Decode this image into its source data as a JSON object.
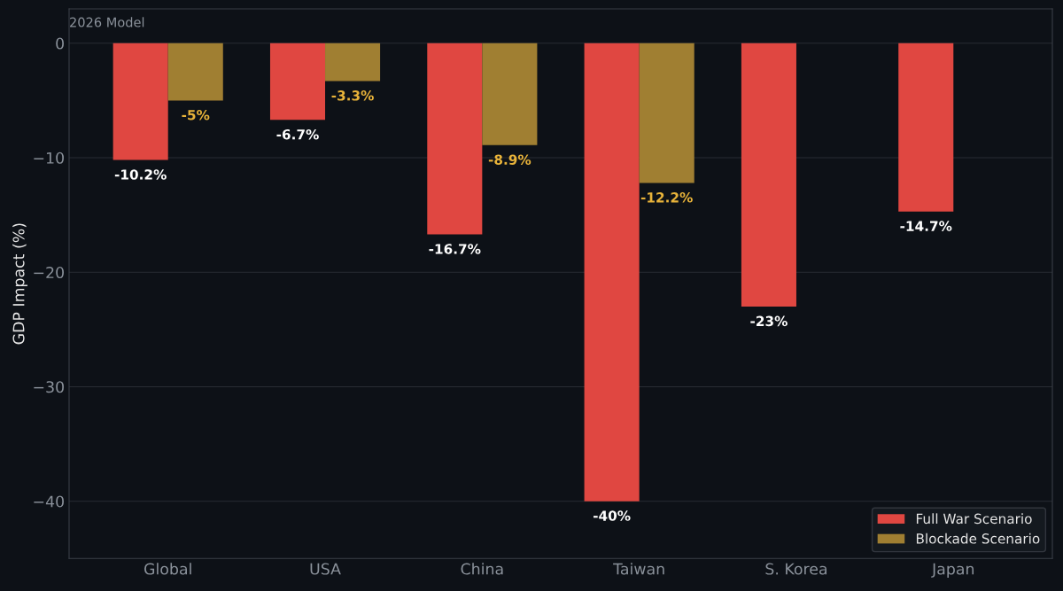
{
  "chart_data": {
    "type": "bar",
    "ylabel": "GDP Impact (%)",
    "annotations": [
      "2026 Model"
    ],
    "categories": [
      "Global",
      "USA",
      "China",
      "Taiwan",
      "S. Korea",
      "Japan"
    ],
    "series": [
      {
        "name": "Full War Scenario",
        "color": "#e04741",
        "values": [
          -10.2,
          -6.7,
          -16.7,
          -40,
          -23,
          -14.7
        ],
        "value_labels": [
          "-10.2%",
          "-6.7%",
          "-16.7%",
          "-40%",
          "-23%",
          "-14.7%"
        ]
      },
      {
        "name": "Blockade Scenario",
        "color": "#a07f32",
        "values": [
          -5,
          -3.3,
          -8.9,
          -12.2,
          null,
          null
        ],
        "value_labels": [
          "-5%",
          "-3.3%",
          "-8.9%",
          "-12.2%",
          null,
          null
        ]
      }
    ],
    "ylim": [
      -45,
      3
    ],
    "yticks": [
      {
        "value": 0,
        "label": "0"
      },
      {
        "value": -10,
        "label": "−10"
      },
      {
        "value": -20,
        "label": "−20"
      },
      {
        "value": -30,
        "label": "−30"
      },
      {
        "value": -40,
        "label": "−40"
      }
    ],
    "grid": "y",
    "legend": "bottom right"
  }
}
